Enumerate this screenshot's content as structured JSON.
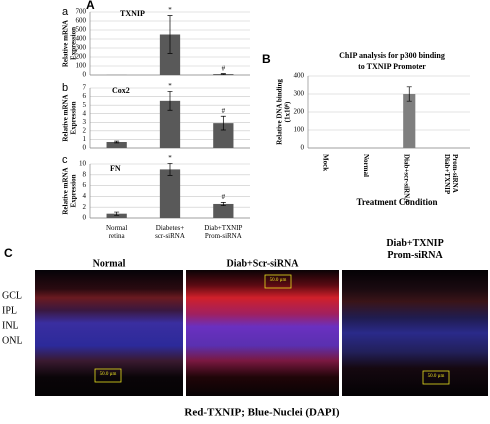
{
  "panel_labels": [
    "A",
    "a",
    "b",
    "c",
    "B",
    "C"
  ],
  "chart_data": [
    {
      "type": "bar",
      "title": "TXNIP",
      "ylabel": [
        "Relative mRNA",
        "Expression"
      ],
      "categories": [
        null,
        null,
        null
      ],
      "values": [
        1,
        450,
        10
      ],
      "errors": [
        null,
        210,
        5
      ],
      "annotations": [
        null,
        "*",
        "#"
      ],
      "color": "#595959",
      "ylim": [
        0,
        700
      ],
      "yticks": [
        0,
        100,
        200,
        300,
        400,
        500,
        600,
        700
      ],
      "grid": true
    },
    {
      "type": "bar",
      "title": "Cox2",
      "ylabel": [
        "Relative mRNA",
        "Expression"
      ],
      "categories": [
        null,
        null,
        null
      ],
      "values": [
        0.7,
        5.5,
        2.9
      ],
      "errors": [
        0.1,
        1.1,
        0.8
      ],
      "annotations": [
        null,
        "*",
        "#"
      ],
      "color": "#595959",
      "ylim": [
        0,
        7
      ],
      "yticks": [
        0,
        1,
        2,
        3,
        4,
        5,
        6,
        7
      ],
      "grid": true
    },
    {
      "type": "bar",
      "title": "FN",
      "ylabel": [
        "Relative mRNA",
        "Expression"
      ],
      "categories": [
        "Normal retina",
        "Diabetes+ scr-siRNA",
        "Diab+TXNIP Prom-siRNA"
      ],
      "values": [
        0.8,
        9,
        2.6
      ],
      "errors": [
        0.3,
        1.1,
        0.3
      ],
      "annotations": [
        null,
        "*",
        "#"
      ],
      "color": "#595959",
      "ylim": [
        0,
        10
      ],
      "yticks": [
        0,
        2,
        4,
        6,
        8,
        10
      ],
      "grid": true
    },
    {
      "type": "bar",
      "title": [
        "ChIP analysis for p300 binding",
        "to TXNIP Promoter"
      ],
      "ylabel": [
        "Relative DNA binding",
        "(1x10⁶)"
      ],
      "xlabel": "Treatment Condition",
      "categories": [
        "Mock",
        "Normal",
        "Diab+scr-siRNA",
        "Diab+TXNIP Prom-siRNA"
      ],
      "values": [
        0,
        0,
        300,
        0
      ],
      "errors": [
        null,
        null,
        40,
        null
      ],
      "color": "#7f7f7f",
      "ylim": [
        0,
        400
      ],
      "yticks": [
        0,
        100,
        200,
        300,
        400
      ],
      "grid": true
    }
  ],
  "micrographs": [
    {
      "title": "Normal",
      "scale_bar": "50.0 µm"
    },
    {
      "title": "Diab+Scr-siRNA",
      "scale_bar": "50.0 µm"
    },
    {
      "title": "Diab+TXNIP Prom-siRNA",
      "scale_bar": "50.0 µm"
    }
  ],
  "layers": [
    "GCL",
    "IPL",
    "INL",
    "ONL"
  ],
  "caption": "Red-TXNIP; Blue-Nuclei (DAPI)"
}
